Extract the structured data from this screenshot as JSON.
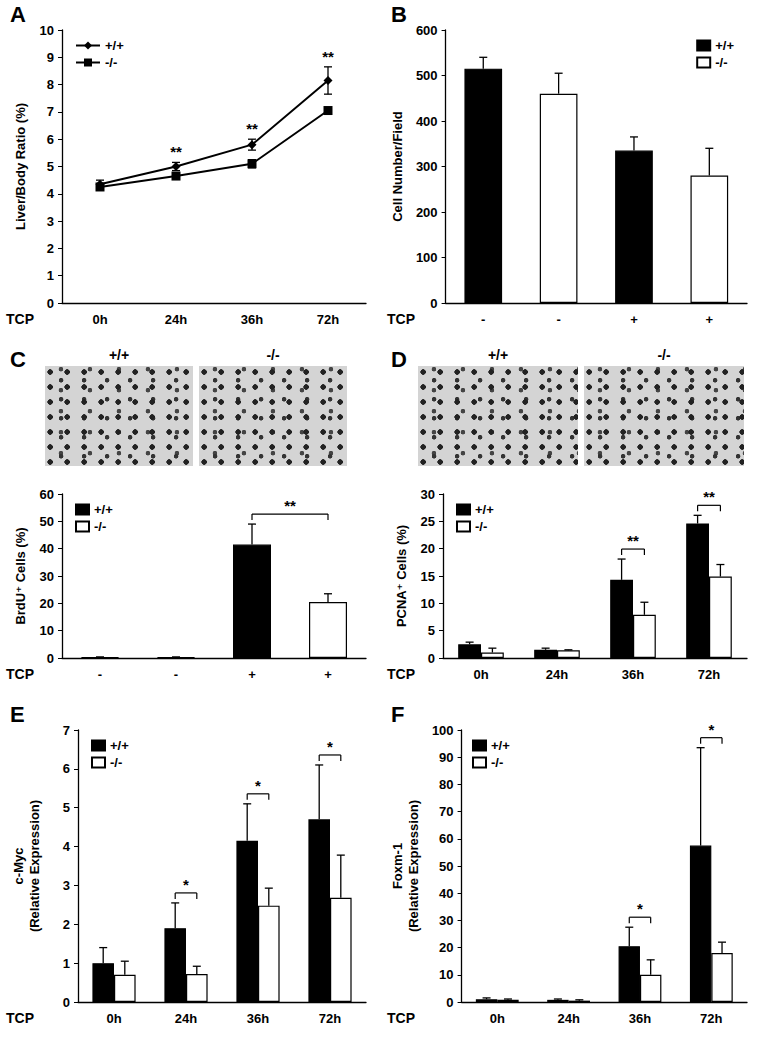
{
  "chart_data": [
    {
      "type": "line",
      "title": "A",
      "y_label": "Liver/Body Ratio (%)",
      "x_label": "TCP",
      "categories": [
        "0h",
        "24h",
        "36h",
        "72h"
      ],
      "series": [
        {
          "name": "+/+",
          "color": "#000000",
          "marker": "diamond",
          "values": [
            4.35,
            5.0,
            5.8,
            8.15
          ],
          "errors": [
            0.15,
            0.15,
            0.2,
            0.5
          ]
        },
        {
          "name": "-/-",
          "color": "#000000",
          "marker": "rect",
          "values": [
            4.25,
            4.65,
            5.1,
            7.05
          ],
          "errors": [
            0.1,
            0.1,
            0.15,
            0.1
          ]
        }
      ],
      "ylim": [
        0,
        10
      ],
      "yticks": [
        0,
        1,
        2,
        3,
        4,
        5,
        6,
        7,
        8,
        9,
        10
      ],
      "grid": false,
      "legend": "upper left",
      "annotations": [
        {
          "category": "24h",
          "text": "**"
        },
        {
          "category": "36h",
          "text": "**"
        },
        {
          "category": "72h",
          "text": "**"
        }
      ]
    },
    {
      "type": "bar",
      "title": "B",
      "y_label": "Cell Number/Field",
      "x_label": "TCP",
      "categories": [
        "-",
        "-",
        "+",
        "+"
      ],
      "series": [
        {
          "name": "+/+",
          "color": "#000000",
          "values": [
            515,
            null,
            335,
            null
          ],
          "errors": [
            25,
            null,
            30,
            null
          ]
        },
        {
          "name": "-/-",
          "color": "#ffffff",
          "values": [
            null,
            460,
            null,
            280
          ],
          "errors": [
            null,
            45,
            null,
            60
          ]
        }
      ],
      "ylim": [
        0,
        600
      ],
      "yticks": [
        0,
        100,
        200,
        300,
        400,
        500,
        600
      ],
      "grid": false,
      "legend": "upper right",
      "annotations": []
    },
    {
      "type": "bar",
      "title": "C",
      "y_label": "BrdU⁺ Cells (%)",
      "x_label": "TCP",
      "image_labels": [
        "+/+",
        "-/-"
      ],
      "categories": [
        "-",
        "-",
        "+",
        "+"
      ],
      "series": [
        {
          "name": "+/+",
          "color": "#000000",
          "values": [
            0.3,
            null,
            41.5,
            null
          ],
          "errors": [
            0.1,
            null,
            7.5,
            null
          ]
        },
        {
          "name": "-/-",
          "color": "#ffffff",
          "values": [
            null,
            0.3,
            null,
            20.5
          ],
          "errors": [
            null,
            0.1,
            null,
            3
          ]
        }
      ],
      "ylim": [
        0,
        60
      ],
      "yticks": [
        0,
        10,
        20,
        30,
        40,
        50,
        60
      ],
      "grid": false,
      "legend": "upper left",
      "annotations": [
        {
          "at": [
            2,
            3
          ],
          "text": "**"
        }
      ]
    },
    {
      "type": "bar",
      "title": "D",
      "y_label": "PCNA⁺ Cells (%)",
      "x_label": "TCP",
      "image_labels": [
        "+/+",
        "-/-"
      ],
      "categories": [
        "0h",
        "24h",
        "36h",
        "72h"
      ],
      "series": [
        {
          "name": "+/+",
          "color": "#000000",
          "values": [
            2.5,
            1.5,
            14.3,
            24.6
          ],
          "errors": [
            0.4,
            0.3,
            3.8,
            1.5
          ]
        },
        {
          "name": "-/-",
          "color": "#ffffff",
          "values": [
            1.0,
            1.4,
            7.9,
            14.9
          ],
          "errors": [
            0.8,
            0.1,
            2.3,
            2.2
          ]
        }
      ],
      "ylim": [
        0,
        30
      ],
      "yticks": [
        0,
        5,
        10,
        15,
        20,
        25,
        30
      ],
      "grid": false,
      "legend": "upper left",
      "annotations": [
        {
          "category": "36h",
          "text": "**"
        },
        {
          "category": "72h",
          "text": "**"
        }
      ]
    },
    {
      "type": "bar",
      "title": "E",
      "y_label": "c-Myc\n(Relative Expression)",
      "x_label": "TCP",
      "categories": [
        "0h",
        "24h",
        "36h",
        "72h"
      ],
      "series": [
        {
          "name": "+/+",
          "color": "#000000",
          "values": [
            1.0,
            1.9,
            4.15,
            4.7
          ],
          "errors": [
            0.4,
            0.65,
            0.95,
            1.4
          ]
        },
        {
          "name": "-/-",
          "color": "#ffffff",
          "values": [
            0.7,
            0.72,
            2.48,
            2.68
          ],
          "errors": [
            0.35,
            0.2,
            0.45,
            1.1
          ]
        }
      ],
      "ylim": [
        0,
        7
      ],
      "yticks": [
        0,
        1,
        2,
        3,
        4,
        5,
        6,
        7
      ],
      "grid": false,
      "legend": "upper left",
      "annotations": [
        {
          "category": "24h",
          "text": "*"
        },
        {
          "category": "36h",
          "text": "*"
        },
        {
          "category": "72h",
          "text": "*"
        }
      ]
    },
    {
      "type": "bar",
      "title": "F",
      "y_label": "Foxm-1\n(Relative Expression)",
      "x_label": "TCP",
      "categories": [
        "0h",
        "24h",
        "36h",
        "72h"
      ],
      "series": [
        {
          "name": "+/+",
          "color": "#000000",
          "values": [
            1.0,
            0.8,
            20.5,
            57.5
          ],
          "errors": [
            0.5,
            0.3,
            7,
            36
          ]
        },
        {
          "name": "-/-",
          "color": "#ffffff",
          "values": [
            0.8,
            0.5,
            10,
            18
          ],
          "errors": [
            0.3,
            0.3,
            5.5,
            4
          ]
        }
      ],
      "ylim": [
        0,
        100
      ],
      "yticks": [
        0,
        10,
        20,
        30,
        40,
        50,
        60,
        70,
        80,
        90,
        100
      ],
      "grid": false,
      "legend": "upper left",
      "annotations": [
        {
          "category": "36h",
          "text": "*"
        },
        {
          "category": "72h",
          "text": "*"
        }
      ]
    }
  ]
}
